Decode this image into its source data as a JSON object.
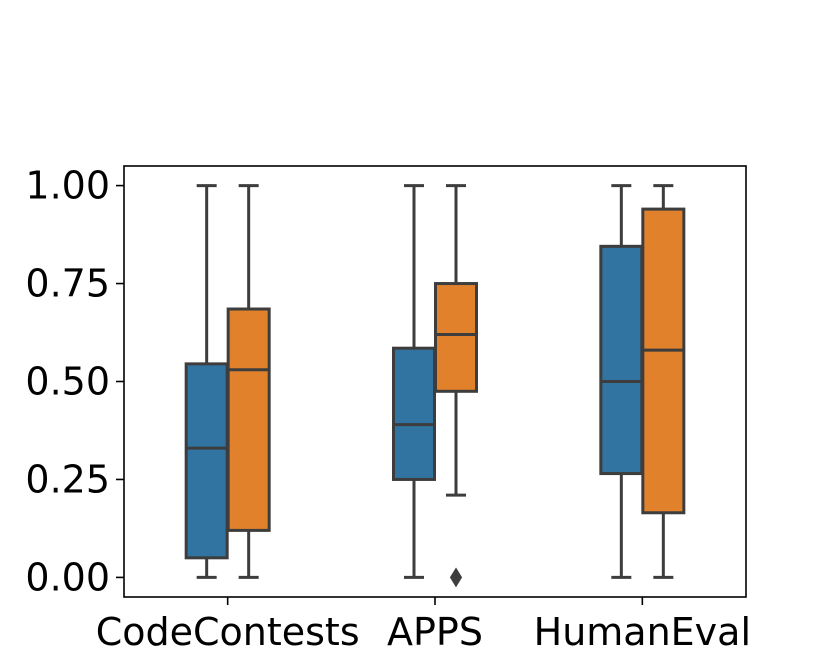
{
  "chart_data": {
    "type": "boxplot",
    "title": "",
    "xlabel": "",
    "ylabel": "",
    "categories": [
      "CodeContests",
      "APPS",
      "HumanEval"
    ],
    "ylim": [
      -0.05,
      1.05
    ],
    "yticks": [
      "0.00",
      "0.25",
      "0.50",
      "0.75",
      "1.00"
    ],
    "ytick_values": [
      0.0,
      0.25,
      0.5,
      0.75,
      1.0
    ],
    "series": [
      {
        "name": "series-1",
        "color": "#3274a1",
        "boxes": [
          {
            "whisker_low": 0.0,
            "q1": 0.05,
            "median": 0.33,
            "q3": 0.545,
            "whisker_high": 1.0,
            "outliers": []
          },
          {
            "whisker_low": 0.0,
            "q1": 0.25,
            "median": 0.39,
            "q3": 0.585,
            "whisker_high": 1.0,
            "outliers": []
          },
          {
            "whisker_low": 0.0,
            "q1": 0.265,
            "median": 0.5,
            "q3": 0.845,
            "whisker_high": 1.0,
            "outliers": []
          }
        ]
      },
      {
        "name": "series-2",
        "color": "#e1812c",
        "boxes": [
          {
            "whisker_low": 0.0,
            "q1": 0.12,
            "median": 0.53,
            "q3": 0.685,
            "whisker_high": 1.0,
            "outliers": []
          },
          {
            "whisker_low": 0.21,
            "q1": 0.475,
            "median": 0.62,
            "q3": 0.75,
            "whisker_high": 1.0,
            "outliers": [
              0.0
            ]
          },
          {
            "whisker_low": 0.0,
            "q1": 0.165,
            "median": 0.58,
            "q3": 0.94,
            "whisker_high": 1.0,
            "outliers": []
          }
        ]
      }
    ],
    "line_color": "#3d3d3d"
  }
}
